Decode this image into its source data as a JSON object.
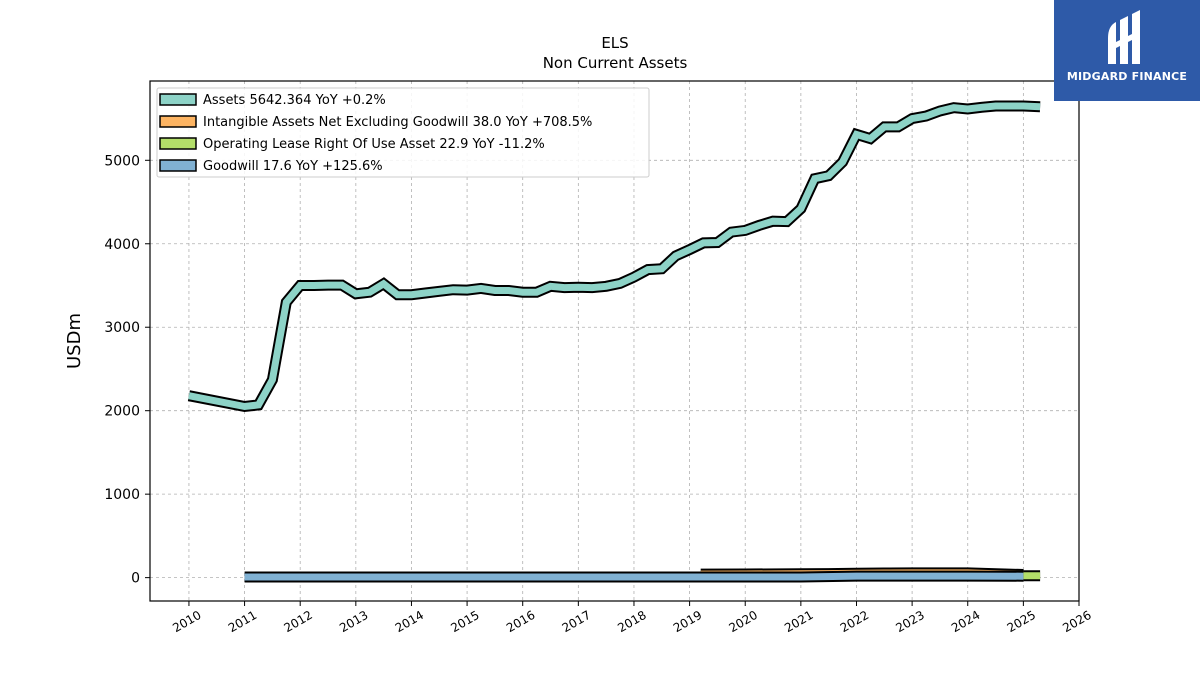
{
  "brand": {
    "name": "MIDGARD FINANCE",
    "bg_color": "#2e5aa8",
    "icon": "midgard-logo-icon"
  },
  "chart_data": {
    "type": "area",
    "title": "ELS",
    "subtitle": "Non Current  Assets",
    "xlabel": "",
    "ylabel": "USDm",
    "xlim": [
      2009.3,
      2026.0
    ],
    "ylim": [
      -280,
      5950
    ],
    "x_ticks": [
      "2010",
      "2011",
      "2012",
      "2013",
      "2014",
      "2015",
      "2016",
      "2017",
      "2018",
      "2019",
      "2020",
      "2021",
      "2022",
      "2023",
      "2024",
      "2025",
      "2026"
    ],
    "y_ticks": [
      0,
      1000,
      2000,
      3000,
      4000,
      5000
    ],
    "grid": true,
    "legend_position": "top-left",
    "series": [
      {
        "name": "Assets  5642.364 YoY +0.2%",
        "color": "#8dd3c7",
        "x": [
          2010.0,
          2011.0,
          2011.25,
          2011.5,
          2011.75,
          2012.0,
          2012.25,
          2012.5,
          2012.75,
          2013.0,
          2013.25,
          2013.5,
          2013.75,
          2014.0,
          2014.25,
          2014.5,
          2014.75,
          2015.0,
          2015.25,
          2015.5,
          2015.75,
          2016.0,
          2016.25,
          2016.5,
          2016.75,
          2017.0,
          2017.25,
          2017.5,
          2017.75,
          2018.0,
          2018.25,
          2018.5,
          2018.75,
          2019.0,
          2019.25,
          2019.5,
          2019.75,
          2020.0,
          2020.25,
          2020.5,
          2020.75,
          2021.0,
          2021.25,
          2021.5,
          2021.75,
          2022.0,
          2022.25,
          2022.5,
          2022.75,
          2023.0,
          2023.25,
          2023.5,
          2023.75,
          2024.0,
          2024.25,
          2024.5,
          2024.75,
          2025.0,
          2025.3
        ],
        "values": [
          2180,
          2050,
          2070,
          2370,
          3300,
          3500,
          3500,
          3505,
          3505,
          3400,
          3420,
          3520,
          3390,
          3390,
          3410,
          3430,
          3450,
          3445,
          3465,
          3440,
          3440,
          3420,
          3420,
          3490,
          3475,
          3480,
          3475,
          3490,
          3525,
          3600,
          3690,
          3700,
          3855,
          3930,
          4010,
          4015,
          4140,
          4160,
          4220,
          4270,
          4265,
          4420,
          4780,
          4815,
          4980,
          5310,
          5260,
          5400,
          5400,
          5500,
          5530,
          5590,
          5630,
          5615,
          5635,
          5650,
          5650,
          5650,
          5642
        ]
      },
      {
        "name": "Intangible Assets Net Excluding Goodwill  38.0 YoY +708.5%",
        "color": "#fdb462",
        "x": [
          2019.2,
          2020.0,
          2021.0,
          2021.5,
          2022.0,
          2022.5,
          2023.0,
          2024.0,
          2025.0
        ],
        "values": [
          42,
          44,
          46,
          48,
          52,
          56,
          57,
          57,
          38
        ]
      },
      {
        "name": "Operating Lease Right Of Use Asset  22.9 YoY -11.2%",
        "color": "#b3de69",
        "x": [
          2025.0,
          2025.3
        ],
        "values": [
          23,
          23
        ]
      },
      {
        "name": "Goodwill  17.6 YoY +125.6%",
        "color": "#80b1d3",
        "x": [
          2011.0,
          2012.0,
          2013.0,
          2014.0,
          2015.0,
          2016.0,
          2017.0,
          2018.0,
          2019.0,
          2020.0,
          2021.0,
          2022.0,
          2023.0,
          2024.0,
          2025.0
        ],
        "values": [
          8,
          8,
          8,
          8,
          8,
          8,
          8,
          8,
          8,
          8,
          8,
          18,
          18,
          18,
          17.6
        ]
      }
    ]
  }
}
